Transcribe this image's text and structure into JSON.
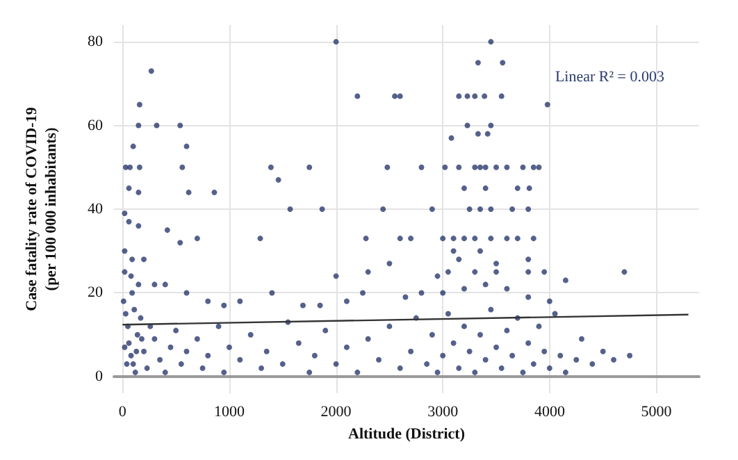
{
  "chart_data": {
    "type": "scatter",
    "xlabel": "Altitude (District)",
    "ylabel": "Case fatality rate of COVID-19\n(per 100 000 inhabitants)",
    "annotations": [
      "Linear R² = 0.003"
    ],
    "xlim": [
      -80,
      5400
    ],
    "ylim": [
      -4,
      84
    ],
    "xticks": [
      0,
      1000,
      2000,
      3000,
      4000,
      5000
    ],
    "yticks": [
      0,
      20,
      40,
      60,
      80
    ],
    "grid": true,
    "marker": "circle",
    "series": [
      {
        "color": "#2b3a6e",
        "x": [
          2000,
          3450,
          3330,
          3560,
          270,
          160,
          150,
          320,
          540,
          2200,
          2550,
          2600,
          3150,
          3230,
          3300,
          3390,
          3550,
          3980,
          3230,
          3450,
          3080,
          3330,
          3420,
          100,
          600,
          30,
          70,
          160,
          560,
          1390,
          1750,
          2480,
          2800,
          3020,
          3150,
          3300,
          3350,
          3400,
          3500,
          3600,
          3750,
          3850,
          3900,
          1460,
          60,
          150,
          620,
          860,
          3200,
          3400,
          3700,
          3810,
          1570,
          1870,
          2440,
          2900,
          3250,
          3350,
          3450,
          3650,
          3800,
          20,
          60,
          150,
          420,
          700,
          540,
          1290,
          2280,
          2600,
          2700,
          3000,
          3100,
          3200,
          3300,
          3450,
          3600,
          3700,
          3850,
          20,
          90,
          200,
          3100,
          3350,
          3500,
          2500,
          3150,
          3800,
          2000,
          2300,
          2950,
          3050,
          3300,
          3500,
          3800,
          3950,
          4150,
          4700,
          20,
          80,
          150,
          300,
          400,
          600,
          800,
          950,
          1100,
          1400,
          1690,
          1850,
          2100,
          2250,
          2650,
          2800,
          3000,
          3200,
          3400,
          3600,
          3800,
          4000,
          10,
          30,
          50,
          60,
          80,
          100,
          120,
          140,
          170,
          200,
          230,
          260,
          300,
          350,
          400,
          450,
          500,
          550,
          600,
          700,
          750,
          800,
          900,
          950,
          1000,
          1100,
          1200,
          1300,
          1350,
          1500,
          1550,
          1650,
          1750,
          1800,
          1900,
          2000,
          2100,
          2200,
          2300,
          2400,
          2500,
          2600,
          2700,
          2750,
          2850,
          2900,
          2950,
          3000,
          3050,
          3100,
          3150,
          3200,
          3250,
          3300,
          3350,
          3400,
          3450,
          3500,
          3550,
          3600,
          3650,
          3700,
          3750,
          3800,
          3850,
          3900,
          3950,
          4000,
          4050,
          4100,
          4150,
          4250,
          4300,
          4400,
          4500,
          4600,
          4750,
          20,
          40,
          90,
          110,
          130,
          180
        ],
        "values": [
          80,
          80,
          75,
          75,
          73,
          65,
          60,
          60,
          60,
          67,
          67,
          67,
          67,
          67,
          67,
          67,
          67,
          65,
          60,
          60,
          57,
          58,
          58,
          55,
          55,
          50,
          50,
          50,
          50,
          50,
          50,
          50,
          50,
          50,
          50,
          50,
          50,
          50,
          50,
          50,
          50,
          50,
          50,
          47,
          45,
          44,
          44,
          44,
          45,
          45,
          45,
          45,
          40,
          40,
          40,
          40,
          40,
          40,
          40,
          40,
          40,
          39,
          37,
          36,
          35,
          33,
          32,
          33,
          33,
          33,
          33,
          33,
          33,
          33,
          33,
          33,
          33,
          33,
          33,
          30,
          28,
          28,
          30,
          30,
          27,
          27,
          28,
          28,
          24,
          25,
          24,
          25,
          25,
          25,
          25,
          25,
          23,
          25,
          25,
          24,
          22,
          22,
          22,
          20,
          18,
          17,
          18,
          20,
          17,
          17,
          18,
          20,
          19,
          20,
          20,
          21,
          22,
          21,
          19,
          18,
          18,
          15,
          12,
          8,
          5,
          3,
          1,
          10,
          14,
          6,
          2,
          12,
          9,
          4,
          1,
          7,
          11,
          3,
          6,
          9,
          2,
          5,
          12,
          1,
          7,
          4,
          10,
          2,
          6,
          3,
          13,
          8,
          1,
          5,
          11,
          3,
          7,
          1,
          9,
          4,
          12,
          2,
          6,
          14,
          3,
          10,
          1,
          5,
          15,
          8,
          2,
          12,
          6,
          1,
          10,
          4,
          16,
          7,
          2,
          11,
          5,
          14,
          1,
          8,
          3,
          12,
          6,
          2,
          15,
          5,
          1,
          4,
          9,
          3,
          6,
          4,
          5,
          7,
          3,
          20,
          16,
          6,
          9
        ]
      },
      {
        "type": "line",
        "marker": "none",
        "color": "#333333",
        "x": [
          0,
          5300
        ],
        "values": [
          12.4,
          14.8
        ]
      }
    ]
  }
}
